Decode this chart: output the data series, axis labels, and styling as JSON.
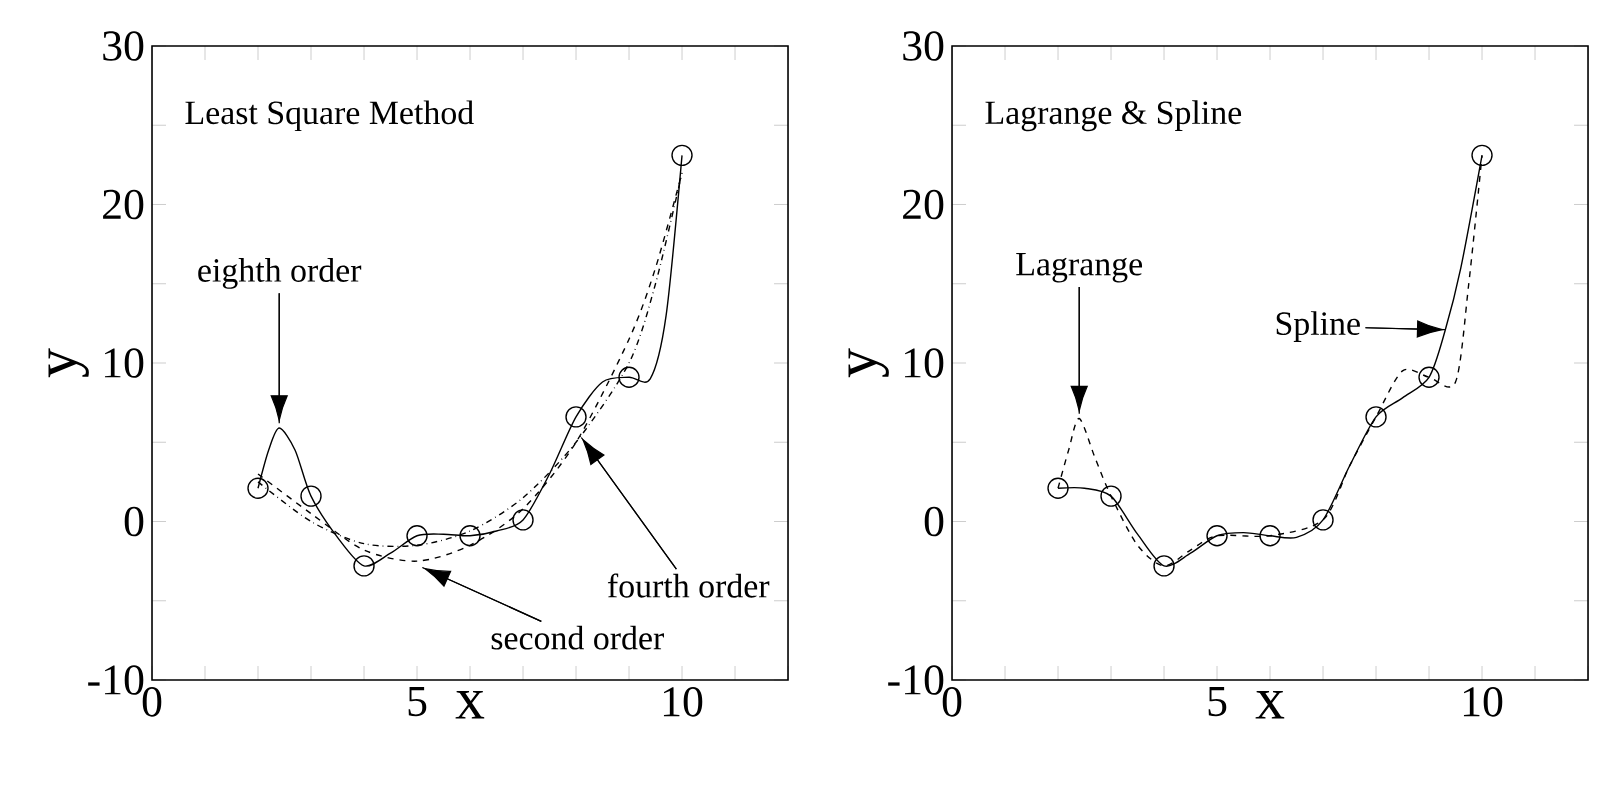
{
  "chart_data": [
    {
      "type": "line",
      "title": "Least Square Method",
      "xlabel": "x",
      "ylabel": "y",
      "xlim": [
        0,
        12
      ],
      "ylim": [
        -10,
        30
      ],
      "xticks": [
        0,
        {
          "value": 1,
          "label": null
        },
        {
          "value": 2,
          "label": null
        },
        {
          "value": 3,
          "label": null
        },
        {
          "value": 4,
          "label": null
        },
        5,
        {
          "value": 6,
          "label": null
        },
        {
          "value": 7,
          "label": null
        },
        {
          "value": 8,
          "label": null
        },
        {
          "value": 9,
          "label": null
        },
        10,
        {
          "value": 11,
          "label": null
        },
        {
          "value": 12,
          "label": null
        }
      ],
      "yticks": [
        -10,
        {
          "value": -5,
          "label": null
        },
        0,
        {
          "value": 5,
          "label": null
        },
        10,
        {
          "value": 15,
          "label": null
        },
        20,
        {
          "value": 25,
          "label": null
        },
        30
      ],
      "series": [
        {
          "type": "line",
          "line_style": "solid",
          "color": "#000000",
          "x": [
            2,
            2.2,
            2.4,
            2.7,
            3,
            3.5,
            4,
            4.5,
            5,
            5.5,
            6,
            6.5,
            7,
            7.5,
            8,
            8.5,
            9,
            9.4,
            9.7,
            10
          ],
          "values": [
            2.1,
            4.5,
            5.9,
            4.5,
            1.6,
            -1,
            -2.8,
            -2,
            -0.9,
            -0.8,
            -0.9,
            -0.6,
            0.1,
            3,
            6.6,
            8.8,
            9.1,
            9,
            13,
            23.1
          ]
        },
        {
          "type": "line",
          "line_style": "dashed",
          "color": "#000000",
          "x": [
            2,
            3,
            4,
            5,
            6,
            7,
            8,
            9,
            9.5,
            10
          ],
          "values": [
            3,
            0.5,
            -1.8,
            -2.5,
            -1.5,
            0.8,
            5,
            11.5,
            16,
            22
          ]
        },
        {
          "type": "line",
          "line_style": "dotted",
          "color": "#000000",
          "x": [
            2,
            3,
            4,
            5,
            6,
            7,
            8,
            9,
            9.5,
            10
          ],
          "values": [
            2.5,
            0,
            -1.4,
            -1.5,
            -0.6,
            1.5,
            5,
            10,
            15,
            22
          ]
        },
        {
          "type": "scatter",
          "marker": "circle",
          "color": "#000000",
          "x": [
            2,
            3,
            4,
            5,
            6,
            7,
            8,
            9,
            10
          ],
          "values": [
            2.1,
            1.6,
            -2.8,
            -0.9,
            -0.9,
            0.1,
            6.6,
            9.1,
            23.1
          ]
        }
      ],
      "annotations": [
        {
          "text": "eighth order",
          "x": 2.4,
          "y": 6.2
        },
        {
          "text": "fourth order",
          "x": 8.1,
          "y": 5.3
        },
        {
          "text": "second order",
          "x": 5.1,
          "y": -2.9
        }
      ]
    },
    {
      "type": "line",
      "title": "Lagrange & Spline",
      "xlabel": "x",
      "ylabel": "y",
      "xlim": [
        0,
        12
      ],
      "ylim": [
        -10,
        30
      ],
      "xticks": [
        0,
        {
          "value": 1,
          "label": null
        },
        {
          "value": 2,
          "label": null
        },
        {
          "value": 3,
          "label": null
        },
        {
          "value": 4,
          "label": null
        },
        5,
        {
          "value": 6,
          "label": null
        },
        {
          "value": 7,
          "label": null
        },
        {
          "value": 8,
          "label": null
        },
        {
          "value": 9,
          "label": null
        },
        10,
        {
          "value": 11,
          "label": null
        },
        {
          "value": 12,
          "label": null
        }
      ],
      "yticks": [
        -10,
        {
          "value": -5,
          "label": null
        },
        0,
        {
          "value": 5,
          "label": null
        },
        10,
        {
          "value": 15,
          "label": null
        },
        20,
        {
          "value": 25,
          "label": null
        },
        30
      ],
      "series": [
        {
          "type": "line",
          "line_style": "dashed",
          "color": "#000000",
          "x": [
            2,
            2.2,
            2.4,
            2.7,
            3,
            3.5,
            4,
            4.5,
            5,
            6,
            7,
            7.5,
            8,
            8.5,
            9,
            9.5,
            9.75,
            10
          ],
          "values": [
            2.1,
            4.5,
            6.5,
            4,
            1.6,
            -1.5,
            -2.8,
            -1.8,
            -0.9,
            -0.9,
            0.1,
            3.5,
            6.6,
            9.5,
            9.1,
            8.8,
            15,
            23.1
          ]
        },
        {
          "type": "line",
          "line_style": "solid",
          "color": "#000000",
          "x": [
            2,
            2.5,
            3,
            3.5,
            4,
            4.5,
            5,
            5.5,
            6,
            6.5,
            7,
            7.5,
            8,
            8.5,
            9,
            9.3,
            9.6,
            10
          ],
          "values": [
            2.1,
            2.1,
            1.6,
            -0.8,
            -2.8,
            -2,
            -0.9,
            -0.7,
            -0.9,
            -1,
            0.1,
            3.5,
            6.6,
            7.8,
            9.1,
            12,
            16,
            23.1
          ]
        },
        {
          "type": "scatter",
          "marker": "circle",
          "color": "#000000",
          "x": [
            2,
            3,
            4,
            5,
            6,
            7,
            8,
            9,
            10
          ],
          "values": [
            2.1,
            1.6,
            -2.8,
            -0.9,
            -0.9,
            0.1,
            6.6,
            9.1,
            23.1
          ]
        }
      ],
      "annotations": [
        {
          "text": "Lagrange",
          "x": 2.4,
          "y": 6.8
        },
        {
          "text": "Spline",
          "x": 9.3,
          "y": 12.1
        }
      ]
    }
  ]
}
